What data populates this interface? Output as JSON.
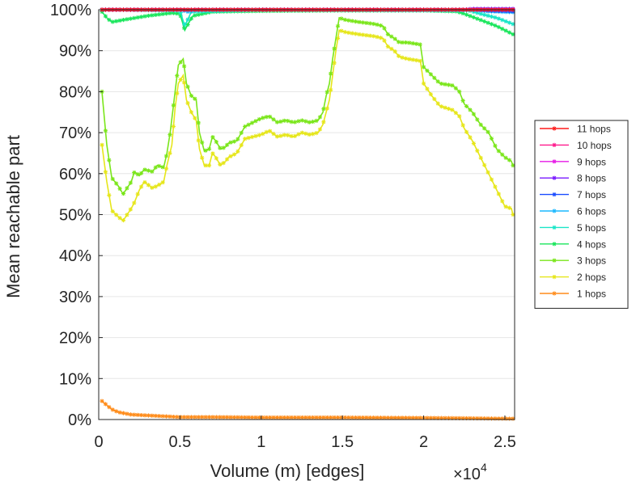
{
  "chart_data": {
    "type": "line",
    "title": "",
    "xlabel": "Volume (m) [edges]",
    "ylabel": "Mean reachable part",
    "x_multiplier_base": "×10",
    "x_multiplier_exp": "4",
    "xlim": [
      0,
      2.56
    ],
    "ylim": [
      0,
      100
    ],
    "x_ticks": [
      0,
      0.5,
      1,
      1.5,
      2,
      2.5
    ],
    "x_tick_labels": [
      "0",
      "0.5",
      "1",
      "1.5",
      "2",
      "2.5"
    ],
    "y_ticks": [
      0,
      10,
      20,
      30,
      40,
      50,
      60,
      70,
      80,
      90,
      100
    ],
    "y_tick_labels": [
      "0%",
      "10%",
      "20%",
      "30%",
      "40%",
      "50%",
      "60%",
      "70%",
      "80%",
      "90%",
      "100%"
    ],
    "grid": true,
    "legend_position": "right",
    "series": [
      {
        "name": "11 hops",
        "color": "#ff1a1a",
        "points": [
          [
            0.02,
            100
          ],
          [
            1.0,
            100
          ],
          [
            2.0,
            100
          ],
          [
            2.55,
            100
          ]
        ]
      },
      {
        "name": "10 hops",
        "color": "#ff1a8c",
        "points": [
          [
            0.02,
            100
          ],
          [
            1.0,
            100
          ],
          [
            2.0,
            100
          ],
          [
            2.55,
            100
          ]
        ]
      },
      {
        "name": "9 hops",
        "color": "#e61ae6",
        "points": [
          [
            0.02,
            100
          ],
          [
            1.0,
            100
          ],
          [
            2.0,
            100
          ],
          [
            2.55,
            100
          ]
        ]
      },
      {
        "name": "8 hops",
        "color": "#7a1aff",
        "points": [
          [
            0.02,
            100
          ],
          [
            1.0,
            100
          ],
          [
            2.25,
            100
          ],
          [
            2.3,
            100.2
          ],
          [
            2.55,
            100.2
          ]
        ]
      },
      {
        "name": "7 hops",
        "color": "#1a4cff",
        "points": [
          [
            0.02,
            100
          ],
          [
            1.0,
            100
          ],
          [
            2.3,
            100
          ],
          [
            2.4,
            99.8
          ],
          [
            2.55,
            99.6
          ]
        ]
      },
      {
        "name": "6 hops",
        "color": "#1ab8ff",
        "points": [
          [
            0.02,
            100
          ],
          [
            0.5,
            100
          ],
          [
            0.55,
            99.5
          ],
          [
            0.6,
            100
          ],
          [
            1.0,
            100
          ],
          [
            2.3,
            100
          ],
          [
            2.4,
            99.6
          ],
          [
            2.55,
            99.4
          ]
        ]
      },
      {
        "name": "5 hops",
        "color": "#1ae6c8",
        "points": [
          [
            0.02,
            100
          ],
          [
            0.5,
            99.8
          ],
          [
            0.53,
            96
          ],
          [
            0.57,
            99.5
          ],
          [
            1.0,
            100
          ],
          [
            2.28,
            99.8
          ],
          [
            2.35,
            99
          ],
          [
            2.45,
            98
          ],
          [
            2.55,
            96.5
          ]
        ]
      },
      {
        "name": "4 hops",
        "color": "#1ae65c",
        "points": [
          [
            0.02,
            99.5
          ],
          [
            0.05,
            98
          ],
          [
            0.08,
            97
          ],
          [
            0.15,
            97.5
          ],
          [
            0.3,
            98.5
          ],
          [
            0.45,
            99.2
          ],
          [
            0.5,
            99
          ],
          [
            0.53,
            95
          ],
          [
            0.55,
            96.5
          ],
          [
            0.58,
            98.5
          ],
          [
            0.7,
            99.5
          ],
          [
            1.0,
            99.7
          ],
          [
            1.5,
            99.8
          ],
          [
            2.0,
            99.8
          ],
          [
            2.2,
            99.6
          ],
          [
            2.25,
            99
          ],
          [
            2.35,
            97.5
          ],
          [
            2.45,
            96
          ],
          [
            2.55,
            94
          ]
        ]
      },
      {
        "name": "3 hops",
        "color": "#7ae61a",
        "points": [
          [
            0.02,
            80
          ],
          [
            0.05,
            67
          ],
          [
            0.08,
            59
          ],
          [
            0.12,
            57
          ],
          [
            0.15,
            55
          ],
          [
            0.2,
            58
          ],
          [
            0.22,
            60.5
          ],
          [
            0.25,
            59.5
          ],
          [
            0.28,
            61
          ],
          [
            0.33,
            60.5
          ],
          [
            0.36,
            62
          ],
          [
            0.4,
            61.5
          ],
          [
            0.42,
            65
          ],
          [
            0.44,
            70
          ],
          [
            0.47,
            80
          ],
          [
            0.49,
            86.5
          ],
          [
            0.52,
            88
          ],
          [
            0.54,
            82
          ],
          [
            0.57,
            79
          ],
          [
            0.6,
            78
          ],
          [
            0.62,
            70
          ],
          [
            0.65,
            65.5
          ],
          [
            0.68,
            66
          ],
          [
            0.7,
            69
          ],
          [
            0.72,
            68
          ],
          [
            0.75,
            66
          ],
          [
            0.78,
            66.5
          ],
          [
            0.8,
            67.5
          ],
          [
            0.85,
            68
          ],
          [
            0.9,
            71.5
          ],
          [
            0.95,
            72.5
          ],
          [
            1.0,
            73.5
          ],
          [
            1.05,
            74
          ],
          [
            1.1,
            72.5
          ],
          [
            1.15,
            73
          ],
          [
            1.2,
            72.5
          ],
          [
            1.25,
            73
          ],
          [
            1.3,
            72.5
          ],
          [
            1.35,
            73
          ],
          [
            1.38,
            75
          ],
          [
            1.4,
            79
          ],
          [
            1.42,
            82
          ],
          [
            1.44,
            88
          ],
          [
            1.46,
            93
          ],
          [
            1.48,
            98
          ],
          [
            1.52,
            97.5
          ],
          [
            1.6,
            97
          ],
          [
            1.7,
            96.5
          ],
          [
            1.75,
            96
          ],
          [
            1.78,
            94
          ],
          [
            1.82,
            93
          ],
          [
            1.85,
            92
          ],
          [
            1.9,
            92
          ],
          [
            1.98,
            91.5
          ],
          [
            2.0,
            86
          ],
          [
            2.05,
            84
          ],
          [
            2.1,
            82
          ],
          [
            2.18,
            81.5
          ],
          [
            2.22,
            80
          ],
          [
            2.25,
            77
          ],
          [
            2.3,
            75
          ],
          [
            2.35,
            72
          ],
          [
            2.4,
            70
          ],
          [
            2.45,
            66
          ],
          [
            2.5,
            64
          ],
          [
            2.54,
            63
          ],
          [
            2.55,
            62
          ]
        ]
      },
      {
        "name": "2 hops",
        "color": "#e6e61a",
        "points": [
          [
            0.02,
            67
          ],
          [
            0.05,
            58
          ],
          [
            0.08,
            51
          ],
          [
            0.12,
            49.5
          ],
          [
            0.15,
            48.5
          ],
          [
            0.2,
            51.5
          ],
          [
            0.22,
            53
          ],
          [
            0.25,
            56
          ],
          [
            0.28,
            58
          ],
          [
            0.33,
            56.5
          ],
          [
            0.36,
            57
          ],
          [
            0.4,
            58
          ],
          [
            0.42,
            62
          ],
          [
            0.45,
            67
          ],
          [
            0.47,
            76
          ],
          [
            0.49,
            82
          ],
          [
            0.52,
            84
          ],
          [
            0.54,
            78
          ],
          [
            0.57,
            75
          ],
          [
            0.6,
            73
          ],
          [
            0.62,
            66
          ],
          [
            0.65,
            62
          ],
          [
            0.68,
            62
          ],
          [
            0.7,
            65
          ],
          [
            0.72,
            64
          ],
          [
            0.75,
            62
          ],
          [
            0.78,
            63
          ],
          [
            0.8,
            64
          ],
          [
            0.85,
            65
          ],
          [
            0.9,
            68.5
          ],
          [
            0.95,
            69
          ],
          [
            1.0,
            69.5
          ],
          [
            1.05,
            70.5
          ],
          [
            1.1,
            69
          ],
          [
            1.15,
            69.5
          ],
          [
            1.2,
            69
          ],
          [
            1.25,
            70
          ],
          [
            1.3,
            69.5
          ],
          [
            1.35,
            70
          ],
          [
            1.38,
            72
          ],
          [
            1.4,
            75
          ],
          [
            1.42,
            78
          ],
          [
            1.44,
            84
          ],
          [
            1.46,
            90
          ],
          [
            1.48,
            95
          ],
          [
            1.52,
            94.5
          ],
          [
            1.6,
            94
          ],
          [
            1.7,
            93.5
          ],
          [
            1.75,
            93
          ],
          [
            1.78,
            91
          ],
          [
            1.82,
            90
          ],
          [
            1.85,
            88.5
          ],
          [
            1.9,
            88
          ],
          [
            1.98,
            87.5
          ],
          [
            2.0,
            82
          ],
          [
            2.05,
            79
          ],
          [
            2.1,
            76.5
          ],
          [
            2.18,
            75.5
          ],
          [
            2.22,
            74
          ],
          [
            2.25,
            71
          ],
          [
            2.3,
            68
          ],
          [
            2.35,
            64
          ],
          [
            2.4,
            60
          ],
          [
            2.45,
            56
          ],
          [
            2.5,
            52
          ],
          [
            2.54,
            51.5
          ],
          [
            2.55,
            50
          ]
        ]
      },
      {
        "name": "1 hops",
        "color": "#ff8c1a",
        "points": [
          [
            0.02,
            4.5
          ],
          [
            0.05,
            3.5
          ],
          [
            0.08,
            2.5
          ],
          [
            0.12,
            1.8
          ],
          [
            0.2,
            1.2
          ],
          [
            0.3,
            1.0
          ],
          [
            0.4,
            0.8
          ],
          [
            0.5,
            0.6
          ],
          [
            0.7,
            0.6
          ],
          [
            1.0,
            0.5
          ],
          [
            1.5,
            0.5
          ],
          [
            2.0,
            0.4
          ],
          [
            2.3,
            0.3
          ],
          [
            2.55,
            0.2
          ]
        ]
      }
    ]
  }
}
